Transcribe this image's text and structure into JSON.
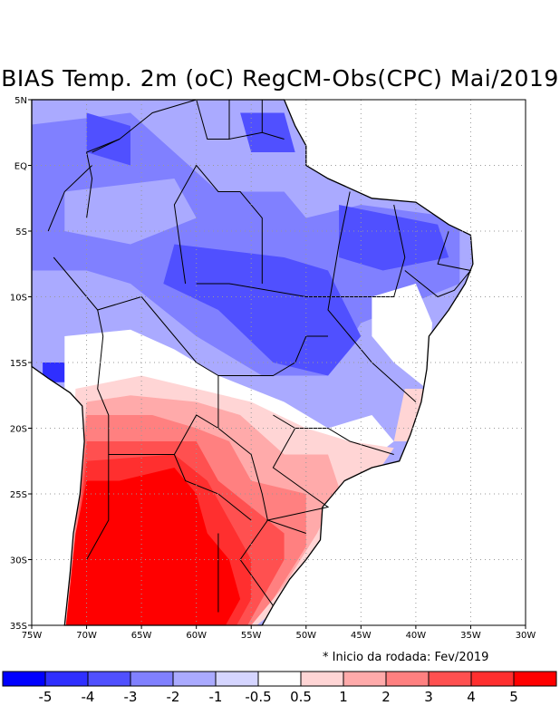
{
  "title": "BIAS Temp. 2m (oC) RegCM-Obs(CPC) Mai/2019",
  "note": "* Inicio da rodada: Fev/2019",
  "lon_labels": [
    "75W",
    "70W",
    "65W",
    "60W",
    "55W",
    "50W",
    "45W",
    "40W",
    "35W",
    "30W"
  ],
  "lat_labels": [
    "5N",
    "EQ",
    "5S",
    "10S",
    "15S",
    "20S",
    "25S",
    "30S",
    "35S"
  ],
  "colorbar": {
    "labels": [
      "-5",
      "-4",
      "-3",
      "-2",
      "-1",
      "-0.5",
      "0.5",
      "1",
      "2",
      "3",
      "4",
      "5"
    ],
    "colors": [
      "#0000ff",
      "#2f2fff",
      "#5050ff",
      "#8080ff",
      "#aaaaff",
      "#d5d5ff",
      "#ffffff",
      "#ffd5d5",
      "#ffaaaa",
      "#ff8080",
      "#ff5050",
      "#ff2f2f",
      "#ff0000"
    ]
  }
}
